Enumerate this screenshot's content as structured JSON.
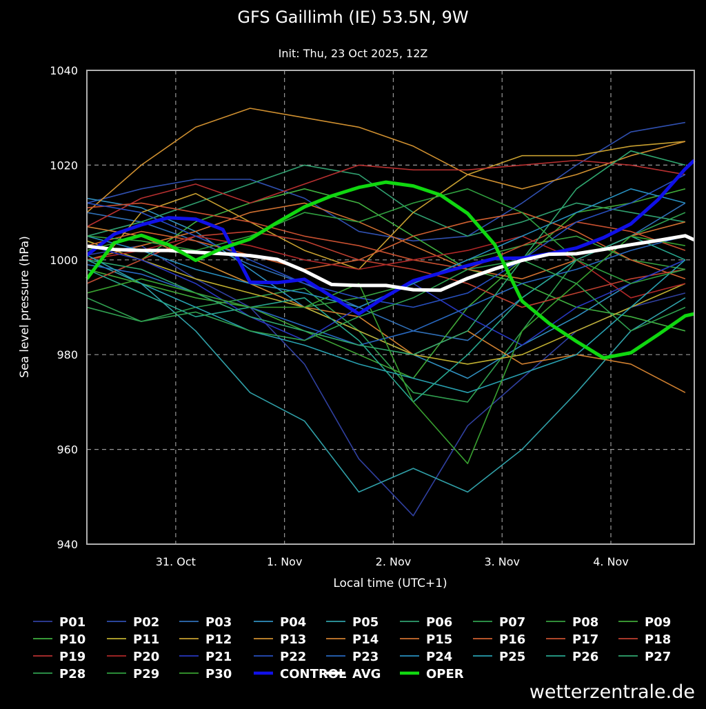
{
  "chart_data": {
    "type": "line",
    "title": "GFS Gaillimh (IE) 53.5N, 9W",
    "subtitle": "Init: Thu, 23 Oct 2025, 12Z",
    "xlabel": "Local time (UTC+1)",
    "ylabel": "Sea level pressure (hPa)",
    "ylim": [
      940,
      1040
    ],
    "yticks": [
      "940",
      "960",
      "980",
      "1000",
      "1020",
      "1040"
    ],
    "xlim_hours": [
      0,
      134
    ],
    "xticks": [
      {
        "label": "31. Oct",
        "hour": 19.6
      },
      {
        "label": "1. Nov",
        "hour": 43.6
      },
      {
        "label": "2. Nov",
        "hour": 67.6
      },
      {
        "label": "3. Nov",
        "hour": 91.6
      },
      {
        "label": "4. Nov",
        "hour": 115.6
      }
    ],
    "grid": true,
    "legend_placement": "bottom",
    "watermark": "wetterzentrale.de",
    "member_hours": [
      0,
      12,
      24,
      36,
      48,
      60,
      72,
      84,
      96,
      108,
      120,
      132
    ],
    "main_hours": [
      0,
      6,
      12,
      18,
      24,
      30,
      36,
      42,
      48,
      54,
      60,
      66,
      72,
      78,
      84,
      90,
      96,
      102,
      108,
      114,
      120,
      126,
      132,
      134
    ],
    "series": [
      {
        "name": "P01",
        "color": "#3040a0",
        "values": [
          1001,
          1003,
          996,
          990,
          978,
          958,
          946,
          965,
          975,
          985,
          990,
          993
        ]
      },
      {
        "name": "P02",
        "color": "#3050b0",
        "values": [
          1012,
          1015,
          1017,
          1017,
          1013,
          1006,
          1004,
          1005,
          1012,
          1020,
          1027,
          1029
        ]
      },
      {
        "name": "P03",
        "color": "#3070b8",
        "values": [
          1010,
          1008,
          1004,
          999,
          995,
          990,
          985,
          983,
          992,
          1000,
          1005,
          1012
        ]
      },
      {
        "name": "P04",
        "color": "#3090c0",
        "values": [
          1013,
          1011,
          1006,
          998,
          990,
          985,
          980,
          975,
          982,
          988,
          995,
          1000
        ]
      },
      {
        "name": "P05",
        "color": "#30a0a8",
        "values": [
          1000,
          995,
          985,
          972,
          966,
          951,
          956,
          951,
          960,
          972,
          985,
          992
        ]
      },
      {
        "name": "P06",
        "color": "#30a070",
        "values": [
          1005,
          1008,
          1012,
          1016,
          1020,
          1018,
          1010,
          1005,
          1008,
          1012,
          1010,
          1008
        ]
      },
      {
        "name": "P07",
        "color": "#30a050",
        "values": [
          990,
          987,
          990,
          992,
          994,
          985,
          972,
          970,
          985,
          1000,
          1005,
          1010
        ]
      },
      {
        "name": "P08",
        "color": "#38a040",
        "values": [
          1002,
          1005,
          1000,
          995,
          990,
          992,
          995,
          1000,
          1003,
          1005,
          1000,
          998
        ]
      },
      {
        "name": "P09",
        "color": "#40a838",
        "values": [
          998,
          995,
          992,
          990,
          985,
          980,
          975,
          990,
          1000,
          1010,
          1012,
          1015
        ]
      },
      {
        "name": "P10",
        "color": "#40b040",
        "values": [
          995,
          1000,
          1008,
          1012,
          1015,
          1012,
          1005,
          998,
          995,
          990,
          988,
          985
        ]
      },
      {
        "name": "P11",
        "color": "#c0b030",
        "values": [
          1004,
          1000,
          996,
          993,
          990,
          985,
          980,
          978,
          980,
          985,
          990,
          995
        ]
      },
      {
        "name": "P12",
        "color": "#c8a030",
        "values": [
          996,
          1010,
          1014,
          1008,
          1002,
          998,
          1010,
          1018,
          1022,
          1022,
          1024,
          1025
        ]
      },
      {
        "name": "P13",
        "color": "#d09030",
        "values": [
          1010,
          1020,
          1028,
          1032,
          1030,
          1028,
          1024,
          1018,
          1015,
          1018,
          1022,
          1025
        ]
      },
      {
        "name": "P14",
        "color": "#d08030",
        "values": [
          1007,
          1005,
          1000,
          995,
          990,
          988,
          980,
          985,
          978,
          980,
          978,
          972
        ]
      },
      {
        "name": "P15",
        "color": "#d07030",
        "values": [
          1000,
          1003,
          1006,
          1010,
          1012,
          1008,
          1003,
          998,
          996,
          1000,
          1005,
          1008
        ]
      },
      {
        "name": "P16",
        "color": "#d06030",
        "values": [
          1003,
          1006,
          1004,
          1001,
          998,
          1000,
          1005,
          1008,
          1010,
          1006,
          1000,
          996
        ]
      },
      {
        "name": "P17",
        "color": "#c85030",
        "values": [
          1011,
          1012,
          1010,
          1008,
          1005,
          1003,
          1000,
          998,
          1003,
          1008,
          1006,
          1002
        ]
      },
      {
        "name": "P18",
        "color": "#c04030",
        "values": [
          995,
          1000,
          1005,
          1006,
          1004,
          1000,
          998,
          995,
          990,
          993,
          996,
          998
        ]
      },
      {
        "name": "P19",
        "color": "#b83030",
        "values": [
          1007,
          1013,
          1016,
          1012,
          1016,
          1020,
          1019,
          1019,
          1020,
          1021,
          1020,
          1018
        ]
      },
      {
        "name": "P20",
        "color": "#b02828",
        "values": [
          1000,
          1002,
          1005,
          1003,
          1000,
          998,
          1000,
          1002,
          1005,
          1000,
          992,
          995
        ]
      },
      {
        "name": "P21",
        "color": "#2838c0",
        "values": [
          1003,
          1000,
          995,
          988,
          983,
          990,
          995,
          988,
          982,
          990,
          995,
          1000
        ]
      },
      {
        "name": "P22",
        "color": "#2850c0",
        "values": [
          1012,
          1010,
          1005,
          1000,
          995,
          992,
          990,
          993,
          1000,
          1008,
          1012,
          1018
        ]
      },
      {
        "name": "P23",
        "color": "#2868c0",
        "values": [
          999,
          997,
          993,
          990,
          986,
          982,
          985,
          990,
          995,
          998,
          1002,
          1005
        ]
      },
      {
        "name": "P24",
        "color": "#2890c0",
        "values": [
          1005,
          1002,
          998,
          995,
          993,
          990,
          995,
          1000,
          1005,
          1010,
          1015,
          1012
        ]
      },
      {
        "name": "P25",
        "color": "#28a0b0",
        "values": [
          1001,
          995,
          990,
          985,
          982,
          978,
          975,
          972,
          976,
          980,
          990,
          1000
        ]
      },
      {
        "name": "P26",
        "color": "#28a890",
        "values": [
          998,
          993,
          988,
          990,
          992,
          983,
          970,
          980,
          992,
          1000,
          1005,
          1000
        ]
      },
      {
        "name": "P27",
        "color": "#30a870",
        "values": [
          1000,
          998,
          993,
          988,
          985,
          982,
          980,
          985,
          1000,
          1015,
          1023,
          1020
        ]
      },
      {
        "name": "P28",
        "color": "#30a050",
        "values": [
          992,
          987,
          989,
          985,
          983,
          988,
          992,
          998,
          1000,
          995,
          985,
          990
        ]
      },
      {
        "name": "P29",
        "color": "#30a040",
        "values": [
          1005,
          1004,
          1002,
          1005,
          1010,
          1008,
          1012,
          1015,
          1010,
          1000,
          995,
          998
        ]
      },
      {
        "name": "P30",
        "color": "#38a030",
        "values": [
          993,
          996,
          993,
          990,
          990,
          995,
          970,
          957,
          985,
          995,
          1005,
          1003
        ]
      },
      {
        "name": "CONTROL",
        "color": "#1010e8",
        "main": true,
        "values": [
          1001,
          1005.4,
          1007.4,
          1008.9,
          1008.6,
          1006.4,
          995.3,
          995.2,
          995.9,
          992.3,
          988.6,
          992.3,
          995.6,
          997.2,
          998.8,
          1000.3,
          1000.4,
          1001.3,
          1002.5,
          1004.7,
          1007.6,
          1012.7,
          1019.2,
          1021
        ]
      },
      {
        "name": "AVG",
        "color": "#ffffff",
        "main": true,
        "values": [
          1002.9,
          1002.2,
          1002,
          1002,
          1001.6,
          1001.3,
          1000.9,
          1000.1,
          997.7,
          994.8,
          994.6,
          994.6,
          993.7,
          993.6,
          996.1,
          998.1,
          999.9,
          1001.2,
          1001.3,
          1002.2,
          1003.2,
          1004.1,
          1005.1,
          1004.2
        ]
      },
      {
        "name": "OPER",
        "color": "#10d810",
        "main": true,
        "values": [
          996,
          1003.6,
          1005.2,
          1003.2,
          999.9,
          1002.5,
          1004.4,
          1007.9,
          1011.2,
          1013.5,
          1015.3,
          1016.4,
          1015.6,
          1013.7,
          1009.8,
          1003.2,
          991.3,
          986.6,
          982.8,
          979.3,
          980.4,
          984.2,
          988.2,
          988.6
        ]
      }
    ]
  }
}
